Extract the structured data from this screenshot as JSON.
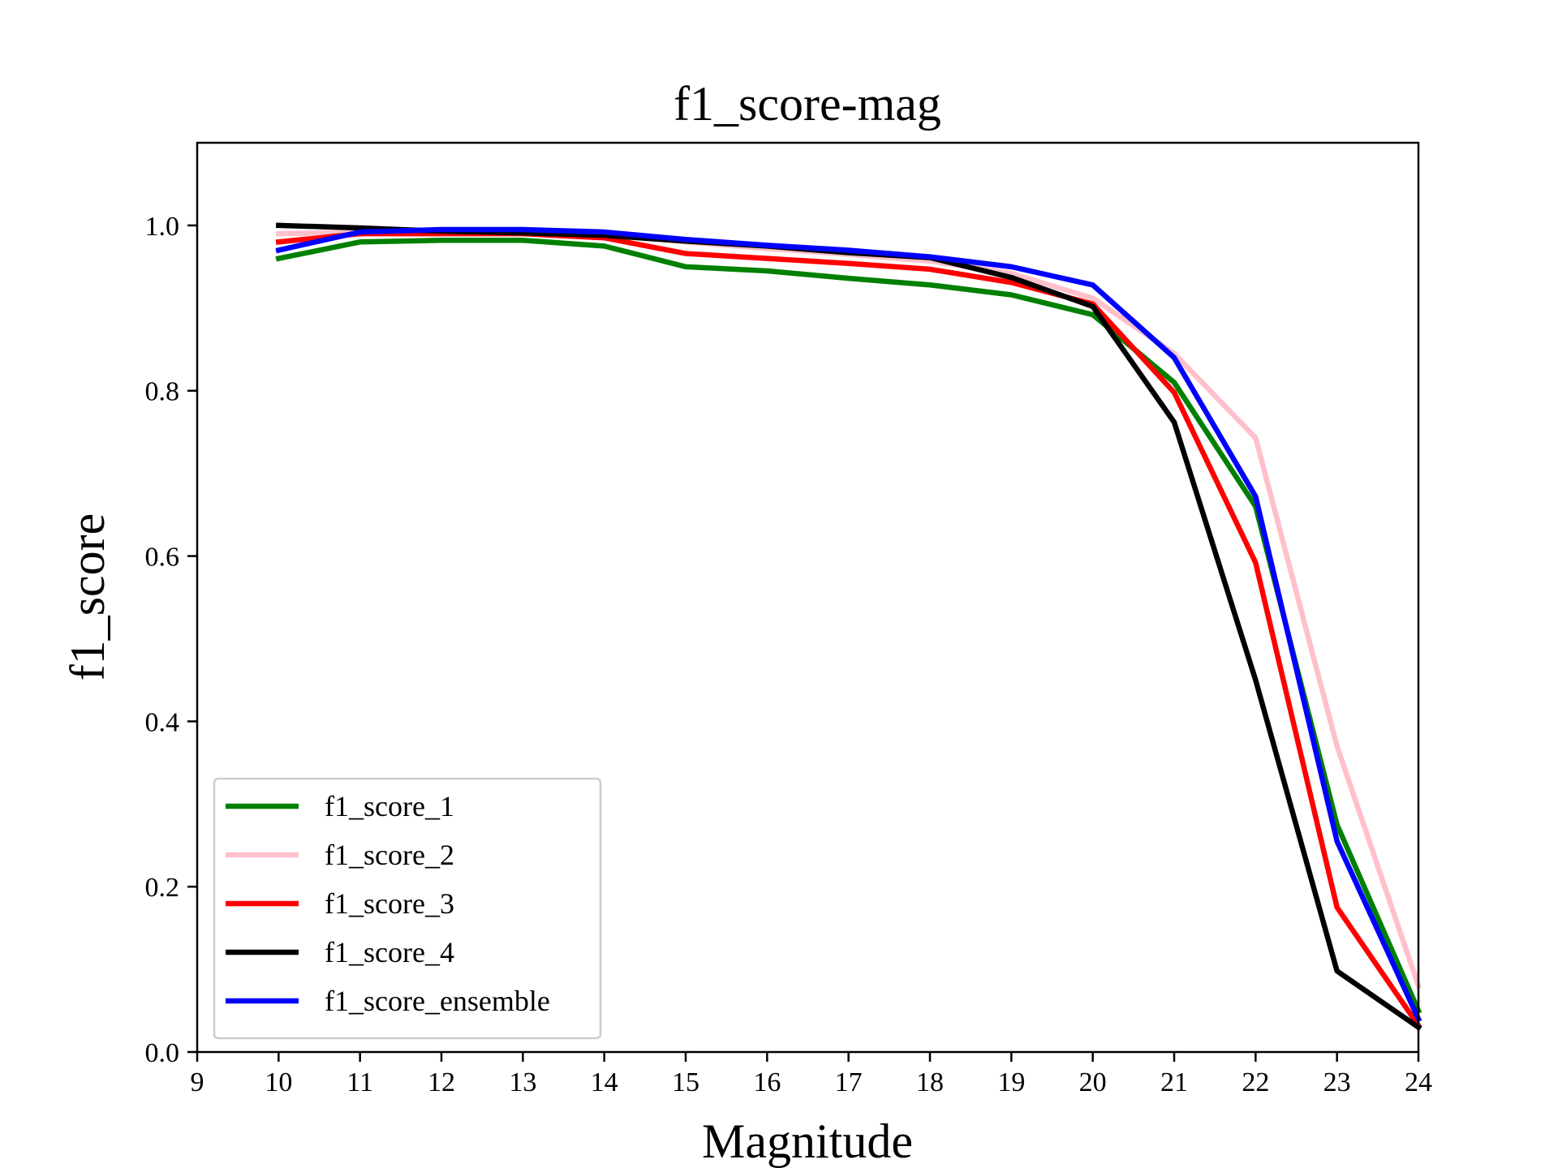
{
  "chart_data": {
    "type": "line",
    "title": "f1_score-mag",
    "xlabel": "Magnitude",
    "ylabel": "f1_score",
    "xlim": [
      9,
      24
    ],
    "ylim": [
      0.0,
      1.1
    ],
    "xticks": [
      9,
      10,
      11,
      12,
      13,
      14,
      15,
      16,
      17,
      18,
      19,
      20,
      21,
      22,
      23,
      24
    ],
    "xtick_labels": [
      "9",
      "10",
      "11",
      "12",
      "13",
      "14",
      "15",
      "16",
      "17",
      "18",
      "19",
      "20",
      "21",
      "22",
      "23",
      "24"
    ],
    "yticks": [
      0.0,
      0.2,
      0.4,
      0.6,
      0.8,
      1.0
    ],
    "ytick_labels": [
      "0.0",
      "0.2",
      "0.4",
      "0.6",
      "0.8",
      "1.0"
    ],
    "grid": false,
    "legend_position": "lower-left",
    "x": [
      10,
      11,
      12,
      13,
      14,
      15,
      16,
      17,
      18,
      19,
      20,
      21,
      22,
      23,
      24
    ],
    "series": [
      {
        "name": "f1_score_1",
        "color": "#008000",
        "values": [
          0.96,
          0.98,
          0.982,
          0.982,
          0.975,
          0.95,
          0.945,
          0.936,
          0.928,
          0.916,
          0.892,
          0.81,
          0.66,
          0.275,
          0.05
        ]
      },
      {
        "name": "f1_score_2",
        "color": "#ffc0cb",
        "values": [
          0.99,
          0.992,
          0.993,
          0.993,
          0.99,
          0.98,
          0.972,
          0.965,
          0.957,
          0.942,
          0.912,
          0.845,
          0.743,
          0.37,
          0.08
        ]
      },
      {
        "name": "f1_score_3",
        "color": "#ff0000",
        "values": [
          0.98,
          0.99,
          0.99,
          0.99,
          0.985,
          0.966,
          0.96,
          0.954,
          0.947,
          0.931,
          0.905,
          0.798,
          0.592,
          0.175,
          0.032
        ]
      },
      {
        "name": "f1_score_4",
        "color": "#000000",
        "values": [
          1.0,
          0.997,
          0.993,
          0.991,
          0.988,
          0.981,
          0.975,
          0.967,
          0.961,
          0.937,
          0.902,
          0.762,
          0.45,
          0.098,
          0.03
        ]
      },
      {
        "name": "f1_score_ensemble",
        "color": "#0000ff",
        "values": [
          0.97,
          0.992,
          0.995,
          0.995,
          0.992,
          0.983,
          0.976,
          0.97,
          0.962,
          0.95,
          0.928,
          0.84,
          0.672,
          0.255,
          0.04
        ]
      }
    ]
  }
}
